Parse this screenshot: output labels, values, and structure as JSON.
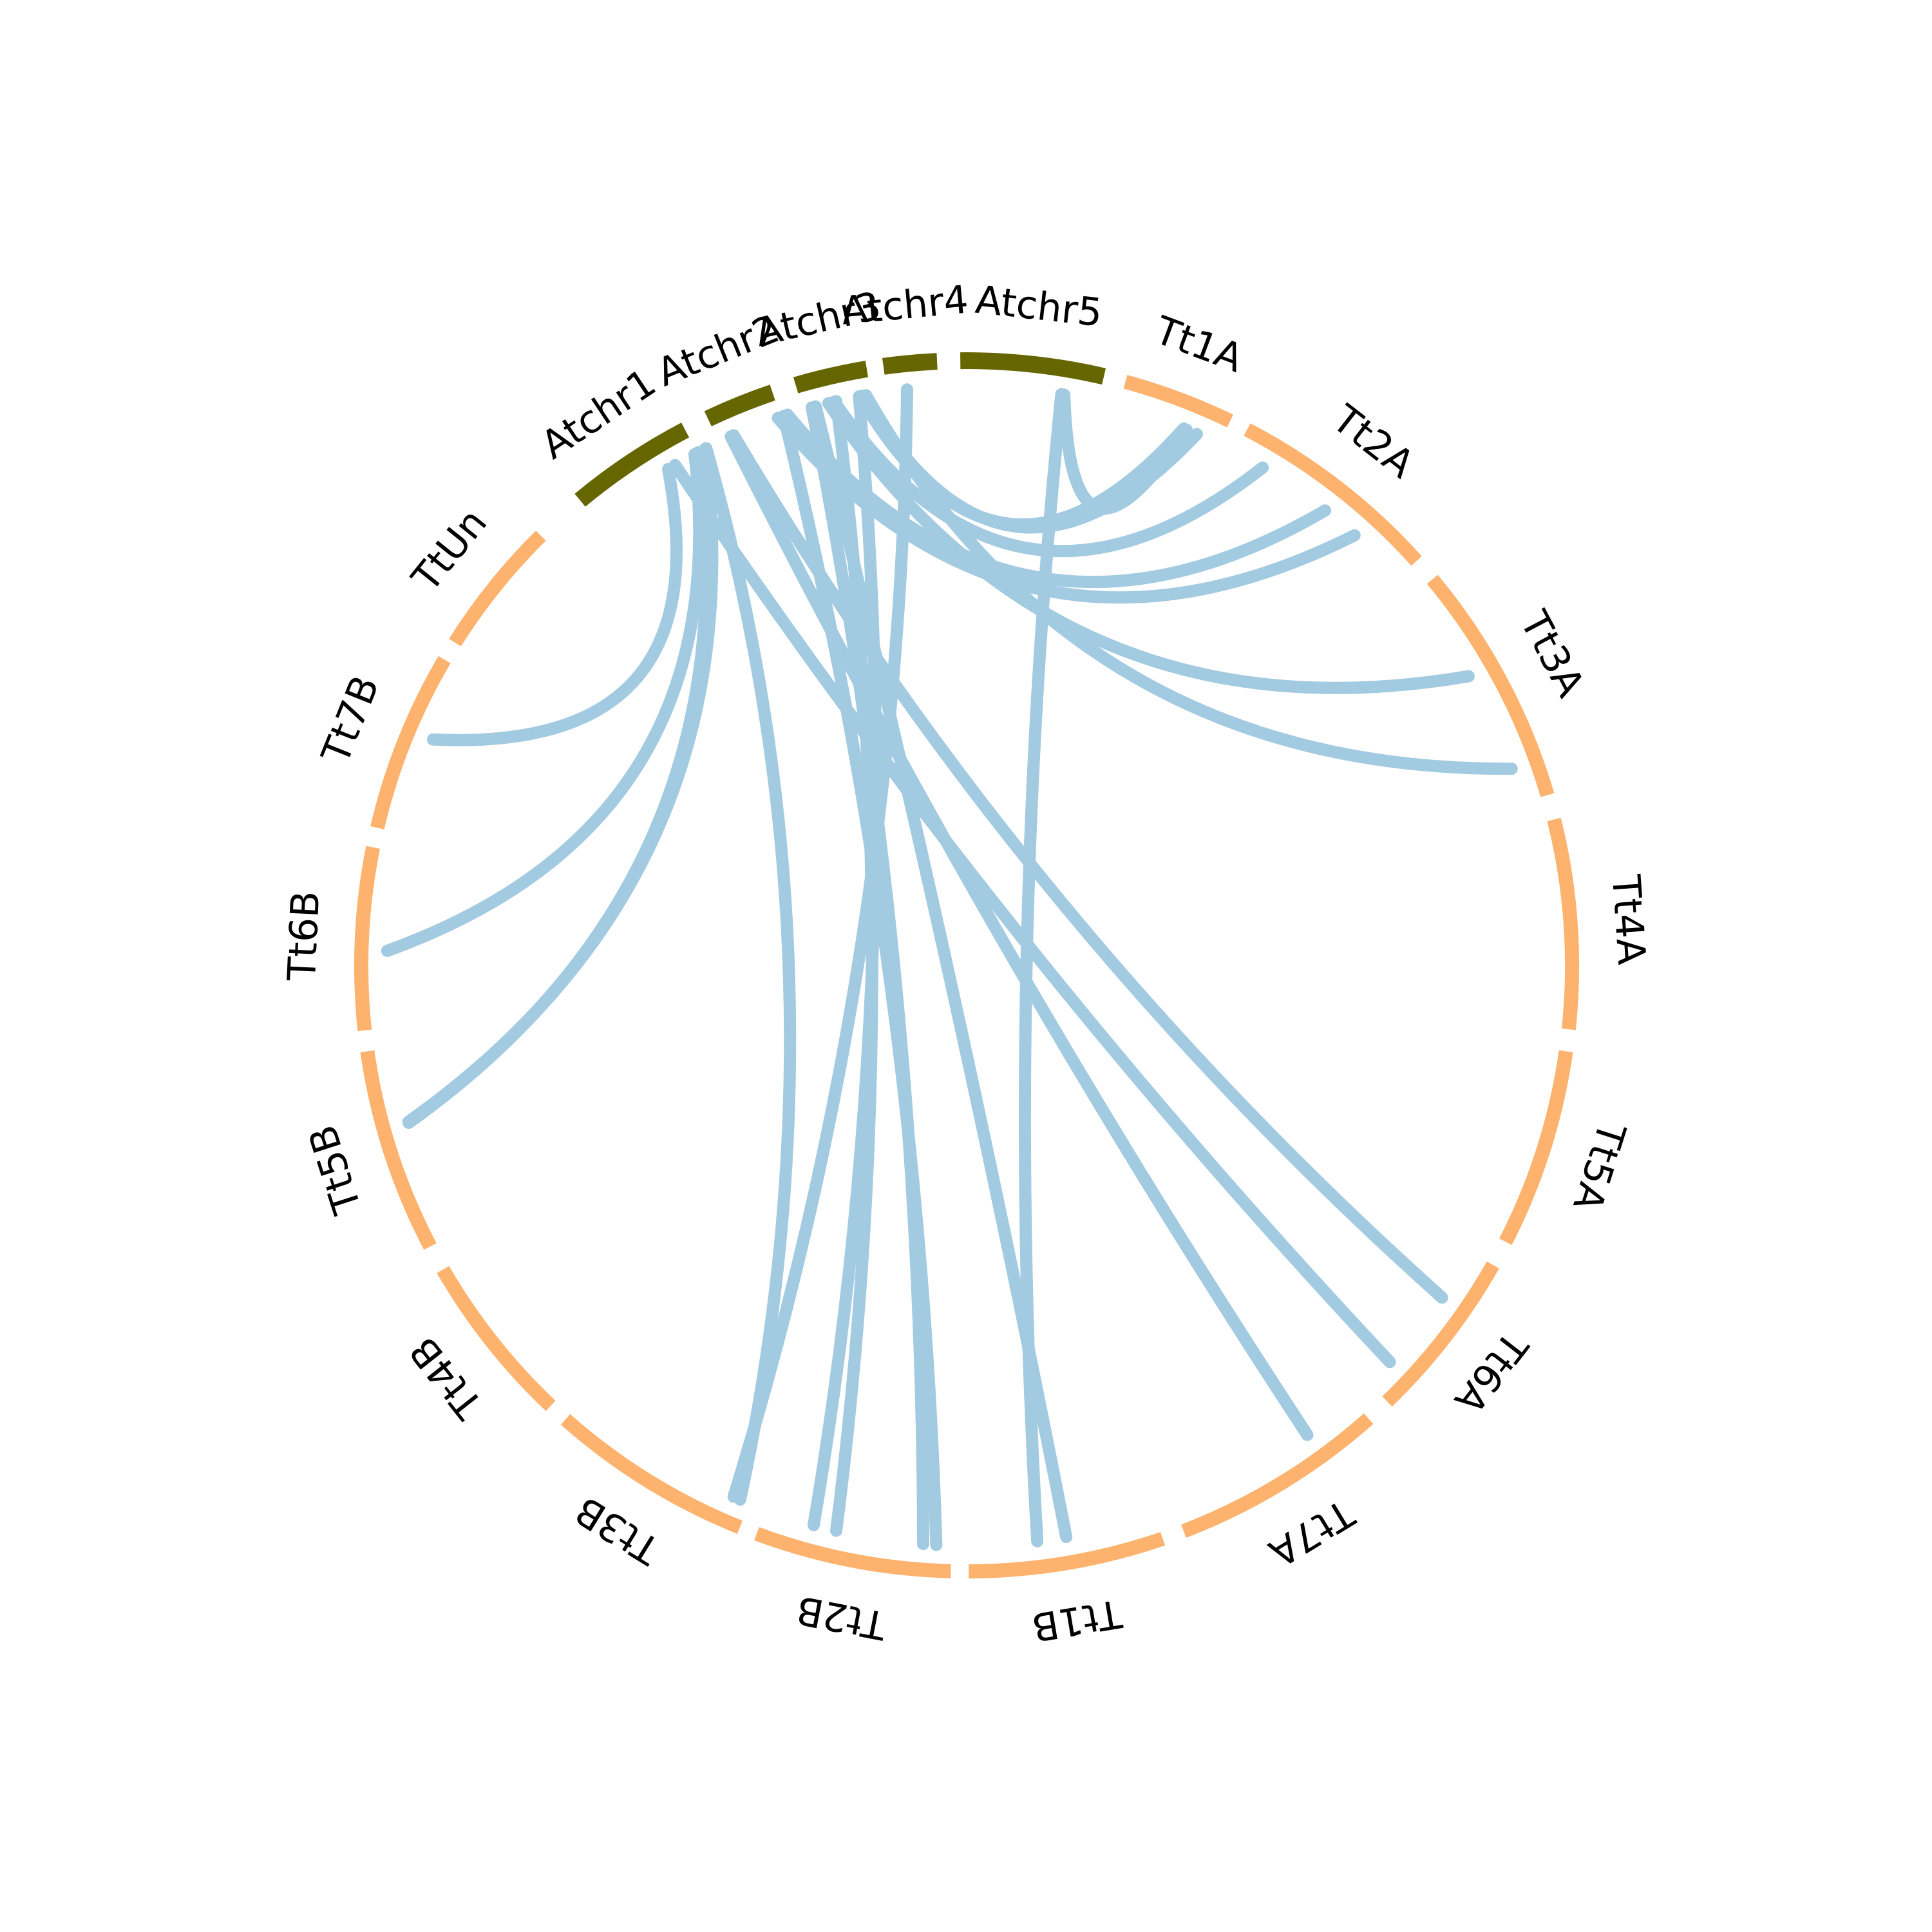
{
  "chart_data": {
    "type": "circos",
    "colors": {
      "wheat": "#fdb26e",
      "arabidopsis": "#666600",
      "link": "#a2cae1"
    },
    "chromosomes": [
      {
        "name": "Atchr1",
        "start_deg": 320.3,
        "end_deg": 332.3,
        "group": "arabidopsis"
      },
      {
        "name": "Atchr2",
        "start_deg": 334.7,
        "end_deg": 341.3,
        "group": "arabidopsis"
      },
      {
        "name": "Atchr3",
        "start_deg": 343.6,
        "end_deg": 350.5,
        "group": "arabidopsis"
      },
      {
        "name": "Atchr4",
        "start_deg": 352.1,
        "end_deg": 357.2,
        "group": "arabidopsis"
      },
      {
        "name": "Atchr5",
        "start_deg": 359.4,
        "end_deg": 373.1,
        "group": "arabidopsis"
      },
      {
        "name": "Tt1A",
        "start_deg": 375.2,
        "end_deg": 385.8,
        "group": "wheat"
      },
      {
        "name": "Tt2A",
        "start_deg": 387.6,
        "end_deg": 408.0,
        "group": "wheat"
      },
      {
        "name": "Tt3A",
        "start_deg": 410.3,
        "end_deg": 433.6,
        "group": "wheat"
      },
      {
        "name": "Tt4A",
        "start_deg": 436.0,
        "end_deg": 456.0,
        "group": "wheat"
      },
      {
        "name": "Tt5A",
        "start_deg": 458.1,
        "end_deg": 477.1,
        "group": "wheat"
      },
      {
        "name": "Tt6A",
        "start_deg": 479.6,
        "end_deg": 496.0,
        "group": "wheat"
      },
      {
        "name": "Tt7A",
        "start_deg": 498.4,
        "end_deg": 519.0,
        "group": "wheat"
      },
      {
        "name": "Tt1B",
        "start_deg": 521.1,
        "end_deg": 539.8,
        "group": "wheat"
      },
      {
        "name": "Tt2B",
        "start_deg": 541.5,
        "end_deg": 560.3,
        "group": "wheat"
      },
      {
        "name": "Tt3B",
        "start_deg": 562.0,
        "end_deg": 581.5,
        "group": "wheat"
      },
      {
        "name": "Tt4B",
        "start_deg": 583.4,
        "end_deg": 599.9,
        "group": "wheat"
      },
      {
        "name": "Tt5B",
        "start_deg": 602.4,
        "end_deg": 621.9,
        "group": "wheat"
      },
      {
        "name": "Tt6B",
        "start_deg": 623.9,
        "end_deg": 641.3,
        "group": "wheat"
      },
      {
        "name": "Tt7B",
        "start_deg": 643.2,
        "end_deg": 660.4,
        "group": "wheat"
      },
      {
        "name": "TtUn",
        "start_deg": 662.3,
        "end_deg": 675.3,
        "group": "wheat"
      }
    ],
    "links": [
      {
        "from": 332.0,
        "to": 631.5
      },
      {
        "from": 332.4,
        "to": 614.3
      },
      {
        "from": 333.2,
        "to": 614.4
      },
      {
        "from": 329.0,
        "to": 653.0
      },
      {
        "from": 333.3,
        "to": 563.0
      },
      {
        "from": 329.8,
        "to": 493.1
      },
      {
        "from": 336.0,
        "to": 504.0
      },
      {
        "from": 336.3,
        "to": 484.9
      },
      {
        "from": 341.0,
        "to": 402.0
      },
      {
        "from": 341.6,
        "to": 543.0
      },
      {
        "from": 342.0,
        "to": 398.2
      },
      {
        "from": 344.5,
        "to": 544.3
      },
      {
        "from": 344.9,
        "to": 530.1
      },
      {
        "from": 347.0,
        "to": 553.0
      },
      {
        "from": 349.3,
        "to": 555.3
      },
      {
        "from": 349.4,
        "to": 382.0
      },
      {
        "from": 349.7,
        "to": 383.4
      },
      {
        "from": 346.2,
        "to": 420.0
      },
      {
        "from": 354.1,
        "to": 563.7
      },
      {
        "from": 369.7,
        "to": 382.3
      },
      {
        "from": 369.4,
        "to": 533.0
      },
      {
        "from": 350.0,
        "to": 430.1
      },
      {
        "from": 346.8,
        "to": 390.7
      }
    ]
  }
}
